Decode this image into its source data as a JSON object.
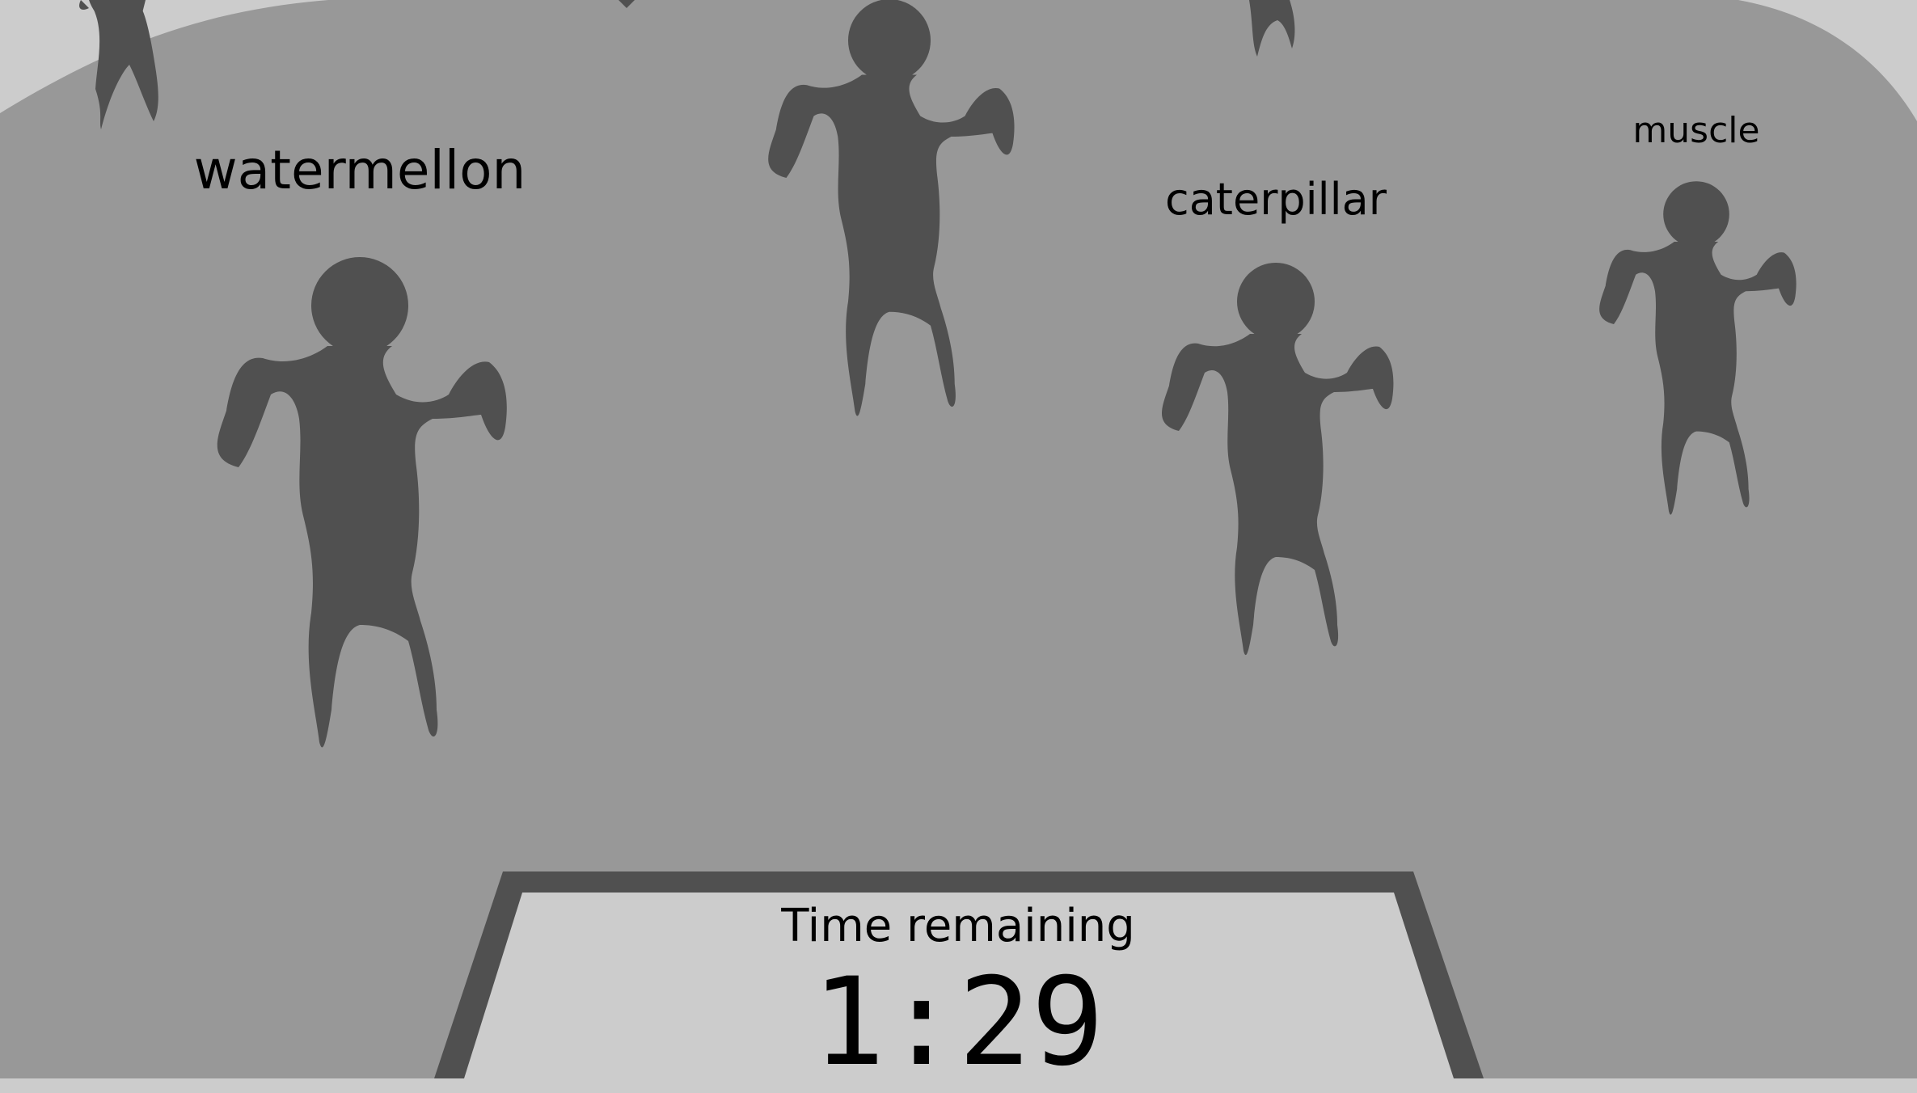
{
  "colors": {
    "sky": "#cccccc",
    "ground": "#989898",
    "zombie": "#505050",
    "panel": "#cccccc",
    "panel_border": "#505050",
    "text": "#000000"
  },
  "zombies": [
    {
      "word": "watermellon"
    },
    {
      "word": "caterpillar"
    },
    {
      "word": "muscle"
    }
  ],
  "timer": {
    "title": "Time remaining",
    "value": "1:29"
  }
}
